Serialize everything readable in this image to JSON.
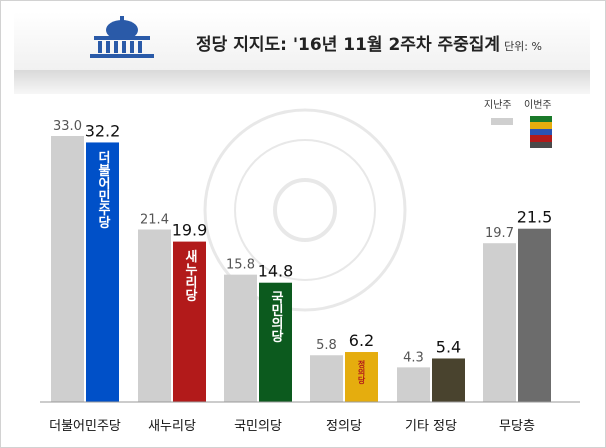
{
  "header": {
    "title": "정당 지지도: '16년 11월 2주차 주중집계",
    "unit": "단위: %",
    "logo_icon": "national-assembly-building-icon"
  },
  "legend": {
    "previous_label": "지난주",
    "current_label": "이번주"
  },
  "bar_labels": [
    "더불어민주당",
    "새누리당",
    "국민의당",
    "정의당"
  ],
  "chart_data": {
    "type": "bar",
    "categories": [
      "더불어민주당",
      "새누리당",
      "국민의당",
      "정의당",
      "기타 정당",
      "무당층"
    ],
    "series": [
      {
        "name": "지난주",
        "values": [
          33.0,
          21.4,
          15.8,
          5.8,
          4.3,
          19.7
        ]
      },
      {
        "name": "이번주",
        "values": [
          32.2,
          19.9,
          14.8,
          6.2,
          5.4,
          21.5
        ]
      }
    ],
    "ylim": [
      0,
      36
    ],
    "legend_position": "top-right",
    "grid": false
  },
  "colors": {
    "previous": "#cfcfcf",
    "current": [
      "#0050c8",
      "#b21a1a",
      "#0c5a1e",
      "#e5ad0e",
      "#49432e",
      "#6c6c6c"
    ],
    "legend_swatch": [
      "#1a7a2a",
      "#e5ad0e",
      "#2a53b3",
      "#b21a1a",
      "#4a4a4a"
    ]
  }
}
